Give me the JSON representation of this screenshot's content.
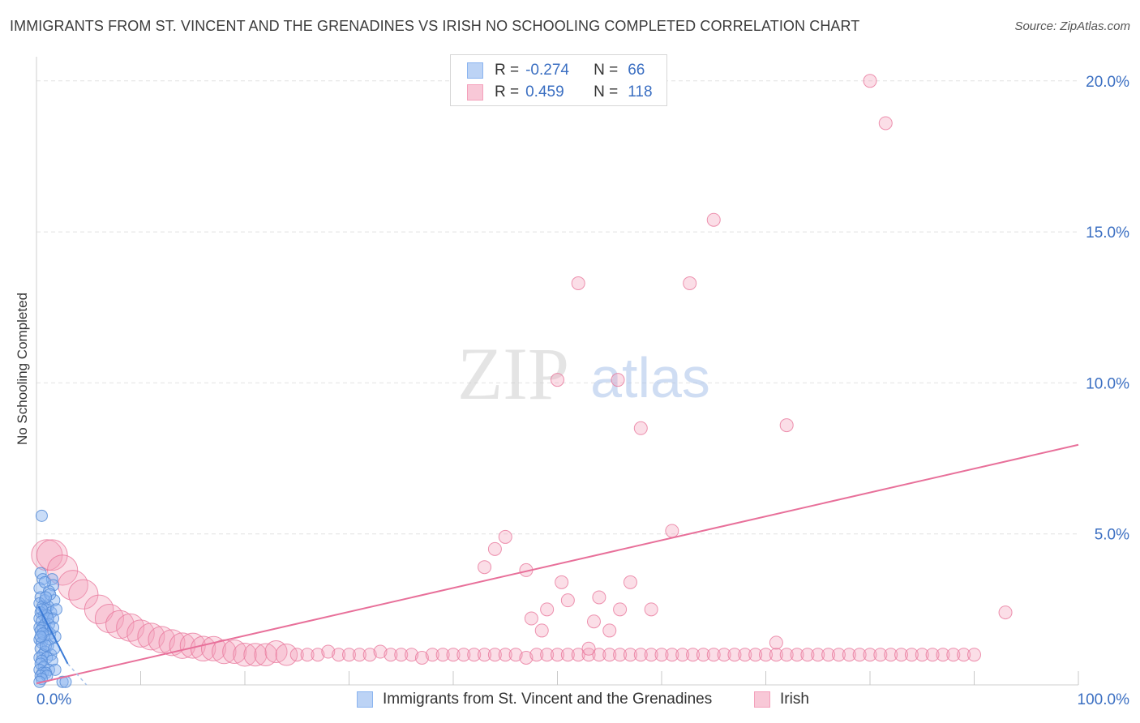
{
  "header": {
    "title": "IMMIGRANTS FROM ST. VINCENT AND THE GRENADINES VS IRISH NO SCHOOLING COMPLETED CORRELATION CHART",
    "source": "Source: ZipAtlas.com"
  },
  "watermark": {
    "zip": "ZIP",
    "atlas": "atlas"
  },
  "legend": {
    "series1": {
      "r_label": "R =",
      "r_value": "-0.274",
      "n_label": "N =",
      "n_value": "66",
      "color": "#8ab4f0"
    },
    "series2": {
      "r_label": "R =",
      "r_value": "0.459",
      "n_label": "N =",
      "n_value": "118",
      "color": "#f4a0bb"
    }
  },
  "bottom_legend": {
    "series1_label": "Immigrants from St. Vincent and the Grenadines",
    "series2_label": "Irish"
  },
  "chart_data": {
    "type": "scatter",
    "title": "IMMIGRANTS FROM ST. VINCENT AND THE GRENADINES VS IRISH NO SCHOOLING COMPLETED CORRELATION CHART",
    "xlabel": "",
    "ylabel": "No Schooling Completed",
    "xlim": [
      0,
      100
    ],
    "ylim": [
      0,
      20.8
    ],
    "x_tick_labels": [
      {
        "value": 0,
        "label": "0.0%"
      },
      {
        "value": 100,
        "label": "100.0%"
      }
    ],
    "y_tick_labels": [
      {
        "value": 5,
        "label": "5.0%"
      },
      {
        "value": 10,
        "label": "10.0%"
      },
      {
        "value": 15,
        "label": "15.0%"
      },
      {
        "value": 20,
        "label": "20.0%"
      }
    ],
    "x_minor_ticks": [
      10,
      20,
      30,
      40,
      50,
      60,
      70,
      80,
      90
    ],
    "grid": true,
    "legend_position": "top-center",
    "series": [
      {
        "name": "Immigrants from St. Vincent and the Grenadines",
        "color": "#8ab4f0",
        "stroke": "#5b8fd8",
        "r": -0.274,
        "n": 66,
        "trend": {
          "x0": 0.2,
          "y0": 2.6,
          "x1": 3.0,
          "y1": 0.7,
          "dash_to_x": 4.8,
          "dash_to_y": 0.0
        },
        "points": [
          [
            0.5,
            5.6
          ],
          [
            0.4,
            3.7
          ],
          [
            0.6,
            3.5
          ],
          [
            1.5,
            3.5
          ],
          [
            1.6,
            3.3
          ],
          [
            0.3,
            3.2
          ],
          [
            1.2,
            3.1
          ],
          [
            0.4,
            2.9
          ],
          [
            0.8,
            2.8
          ],
          [
            1.7,
            2.8
          ],
          [
            0.3,
            2.7
          ],
          [
            0.6,
            2.6
          ],
          [
            1.1,
            2.6
          ],
          [
            0.9,
            2.5
          ],
          [
            1.4,
            2.4
          ],
          [
            0.4,
            2.4
          ],
          [
            0.7,
            2.3
          ],
          [
            1.0,
            2.3
          ],
          [
            0.3,
            2.2
          ],
          [
            1.6,
            2.2
          ],
          [
            0.5,
            2.1
          ],
          [
            0.8,
            2.0
          ],
          [
            1.2,
            2.0
          ],
          [
            0.3,
            1.9
          ],
          [
            0.6,
            1.9
          ],
          [
            1.0,
            1.8
          ],
          [
            0.4,
            1.8
          ],
          [
            1.3,
            1.7
          ],
          [
            0.7,
            1.6
          ],
          [
            1.8,
            1.6
          ],
          [
            0.3,
            1.5
          ],
          [
            0.5,
            1.4
          ],
          [
            1.1,
            1.3
          ],
          [
            0.4,
            1.2
          ],
          [
            0.8,
            1.1
          ],
          [
            1.4,
            1.0
          ],
          [
            0.6,
            1.0
          ],
          [
            0.3,
            0.9
          ],
          [
            1.0,
            0.9
          ],
          [
            1.5,
            0.8
          ],
          [
            0.5,
            0.8
          ],
          [
            0.4,
            0.7
          ],
          [
            0.7,
            0.6
          ],
          [
            1.2,
            0.5
          ],
          [
            0.3,
            0.5
          ],
          [
            1.8,
            0.5
          ],
          [
            0.6,
            0.4
          ],
          [
            0.9,
            0.4
          ],
          [
            0.4,
            0.3
          ],
          [
            1.0,
            0.3
          ],
          [
            0.5,
            0.2
          ],
          [
            2.5,
            0.1
          ],
          [
            2.8,
            0.1
          ],
          [
            0.3,
            0.1
          ],
          [
            1.3,
            3.0
          ],
          [
            0.8,
            3.4
          ],
          [
            1.9,
            2.5
          ],
          [
            0.5,
            2.5
          ],
          [
            1.1,
            2.2
          ],
          [
            0.9,
            2.9
          ],
          [
            1.6,
            1.9
          ],
          [
            0.6,
            1.7
          ],
          [
            1.3,
            1.5
          ],
          [
            0.9,
            1.3
          ],
          [
            1.7,
            1.2
          ],
          [
            0.4,
            1.6
          ]
        ]
      },
      {
        "name": "Irish",
        "color": "#f4a0bb",
        "stroke": "#e8789c",
        "r": 0.459,
        "n": 118,
        "trend": {
          "x0": 0.0,
          "y0": 0.05,
          "x1": 100.0,
          "y1": 7.95
        },
        "points": [
          [
            1.0,
            4.3
          ],
          [
            1.5,
            4.3
          ],
          [
            2.5,
            3.8
          ],
          [
            3.5,
            3.3
          ],
          [
            4.5,
            3.0
          ],
          [
            6.0,
            2.5
          ],
          [
            7.0,
            2.2
          ],
          [
            8.0,
            2.0
          ],
          [
            9.0,
            1.9
          ],
          [
            10.0,
            1.7
          ],
          [
            11.0,
            1.6
          ],
          [
            12.0,
            1.5
          ],
          [
            13.0,
            1.4
          ],
          [
            14.0,
            1.3
          ],
          [
            15.0,
            1.3
          ],
          [
            16.0,
            1.2
          ],
          [
            17.0,
            1.2
          ],
          [
            18.0,
            1.1
          ],
          [
            19.0,
            1.1
          ],
          [
            20.0,
            1.0
          ],
          [
            21.0,
            1.0
          ],
          [
            22.0,
            1.0
          ],
          [
            23.0,
            1.1
          ],
          [
            24.0,
            1.0
          ],
          [
            25.0,
            1.0
          ],
          [
            26.0,
            1.0
          ],
          [
            27.0,
            1.0
          ],
          [
            28.0,
            1.1
          ],
          [
            29.0,
            1.0
          ],
          [
            30.0,
            1.0
          ],
          [
            31.0,
            1.0
          ],
          [
            32.0,
            1.0
          ],
          [
            33.0,
            1.1
          ],
          [
            34.0,
            1.0
          ],
          [
            35.0,
            1.0
          ],
          [
            36.0,
            1.0
          ],
          [
            37.0,
            0.9
          ],
          [
            38.0,
            1.0
          ],
          [
            39.0,
            1.0
          ],
          [
            40.0,
            1.0
          ],
          [
            41.0,
            1.0
          ],
          [
            42.0,
            1.0
          ],
          [
            43.0,
            1.0
          ],
          [
            44.0,
            1.0
          ],
          [
            45.0,
            1.0
          ],
          [
            46.0,
            1.0
          ],
          [
            47.0,
            0.9
          ],
          [
            48.0,
            1.0
          ],
          [
            49.0,
            1.0
          ],
          [
            50.0,
            1.0
          ],
          [
            51.0,
            1.0
          ],
          [
            52.0,
            1.0
          ],
          [
            53.0,
            1.0
          ],
          [
            54.0,
            1.0
          ],
          [
            55.0,
            1.0
          ],
          [
            56.0,
            1.0
          ],
          [
            57.0,
            1.0
          ],
          [
            58.0,
            1.0
          ],
          [
            59.0,
            1.0
          ],
          [
            60.0,
            1.0
          ],
          [
            61.0,
            1.0
          ],
          [
            62.0,
            1.0
          ],
          [
            63.0,
            1.0
          ],
          [
            64.0,
            1.0
          ],
          [
            65.0,
            1.0
          ],
          [
            66.0,
            1.0
          ],
          [
            67.0,
            1.0
          ],
          [
            68.0,
            1.0
          ],
          [
            69.0,
            1.0
          ],
          [
            70.0,
            1.0
          ],
          [
            71.0,
            1.0
          ],
          [
            72.0,
            1.0
          ],
          [
            73.0,
            1.0
          ],
          [
            74.0,
            1.0
          ],
          [
            75.0,
            1.0
          ],
          [
            76.0,
            1.0
          ],
          [
            77.0,
            1.0
          ],
          [
            78.0,
            1.0
          ],
          [
            79.0,
            1.0
          ],
          [
            80.0,
            1.0
          ],
          [
            81.0,
            1.0
          ],
          [
            82.0,
            1.0
          ],
          [
            83.0,
            1.0
          ],
          [
            84.0,
            1.0
          ],
          [
            85.0,
            1.0
          ],
          [
            86.0,
            1.0
          ],
          [
            87.0,
            1.0
          ],
          [
            88.0,
            1.0
          ],
          [
            89.0,
            1.0
          ],
          [
            90.0,
            1.0
          ],
          [
            80.0,
            20.0
          ],
          [
            81.5,
            18.6
          ],
          [
            65.0,
            15.4
          ],
          [
            52.0,
            13.3
          ],
          [
            62.7,
            13.3
          ],
          [
            50.0,
            10.1
          ],
          [
            55.8,
            10.1
          ],
          [
            58.0,
            8.5
          ],
          [
            72.0,
            8.6
          ],
          [
            45.0,
            4.9
          ],
          [
            61.0,
            5.1
          ],
          [
            44.0,
            4.5
          ],
          [
            43.0,
            3.9
          ],
          [
            47.0,
            3.8
          ],
          [
            50.4,
            3.4
          ],
          [
            57.0,
            3.4
          ],
          [
            54.0,
            2.9
          ],
          [
            51.0,
            2.8
          ],
          [
            56.0,
            2.5
          ],
          [
            59.0,
            2.5
          ],
          [
            49.0,
            2.5
          ],
          [
            47.5,
            2.2
          ],
          [
            53.5,
            2.1
          ],
          [
            55.0,
            1.8
          ],
          [
            48.5,
            1.8
          ],
          [
            93.0,
            2.4
          ],
          [
            71.0,
            1.4
          ],
          [
            53.0,
            1.2
          ]
        ]
      }
    ]
  }
}
